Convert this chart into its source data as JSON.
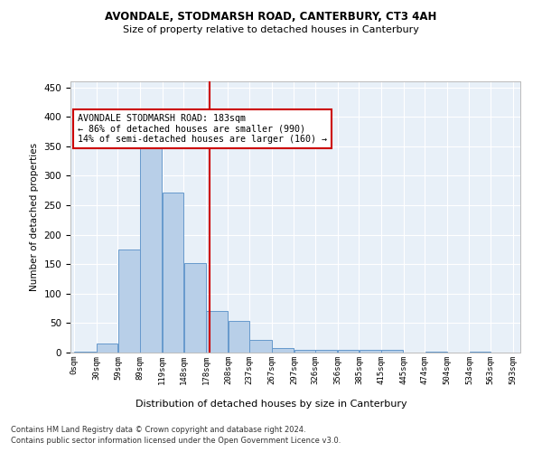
{
  "title1": "AVONDALE, STODMARSH ROAD, CANTERBURY, CT3 4AH",
  "title2": "Size of property relative to detached houses in Canterbury",
  "xlabel": "Distribution of detached houses by size in Canterbury",
  "ylabel": "Number of detached properties",
  "bar_color": "#b8cfe8",
  "bar_edge_color": "#6699cc",
  "vline_color": "#cc0000",
  "vline_x": 183,
  "bins": [
    0,
    30,
    59,
    89,
    119,
    148,
    178,
    208,
    237,
    267,
    297,
    326,
    356,
    385,
    415,
    445,
    474,
    504,
    534,
    563,
    593
  ],
  "bin_labels": [
    "0sqm",
    "30sqm",
    "59sqm",
    "89sqm",
    "119sqm",
    "148sqm",
    "178sqm",
    "208sqm",
    "237sqm",
    "267sqm",
    "297sqm",
    "326sqm",
    "356sqm",
    "385sqm",
    "415sqm",
    "445sqm",
    "474sqm",
    "504sqm",
    "534sqm",
    "563sqm",
    "593sqm"
  ],
  "counts": [
    2,
    15,
    175,
    365,
    272,
    152,
    70,
    54,
    22,
    8,
    5,
    5,
    5,
    5,
    5,
    0,
    1,
    0,
    1,
    0
  ],
  "annotation_title": "AVONDALE STODMARSH ROAD: 183sqm",
  "annotation_line1": "← 86% of detached houses are smaller (990)",
  "annotation_line2": "14% of semi-detached houses are larger (160) →",
  "annotation_box_color": "#ffffff",
  "annotation_box_edge": "#cc0000",
  "footer1": "Contains HM Land Registry data © Crown copyright and database right 2024.",
  "footer2": "Contains public sector information licensed under the Open Government Licence v3.0.",
  "bg_color": "#e8f0f8",
  "ylim": [
    0,
    460
  ],
  "yticks": [
    0,
    50,
    100,
    150,
    200,
    250,
    300,
    350,
    400,
    450
  ]
}
